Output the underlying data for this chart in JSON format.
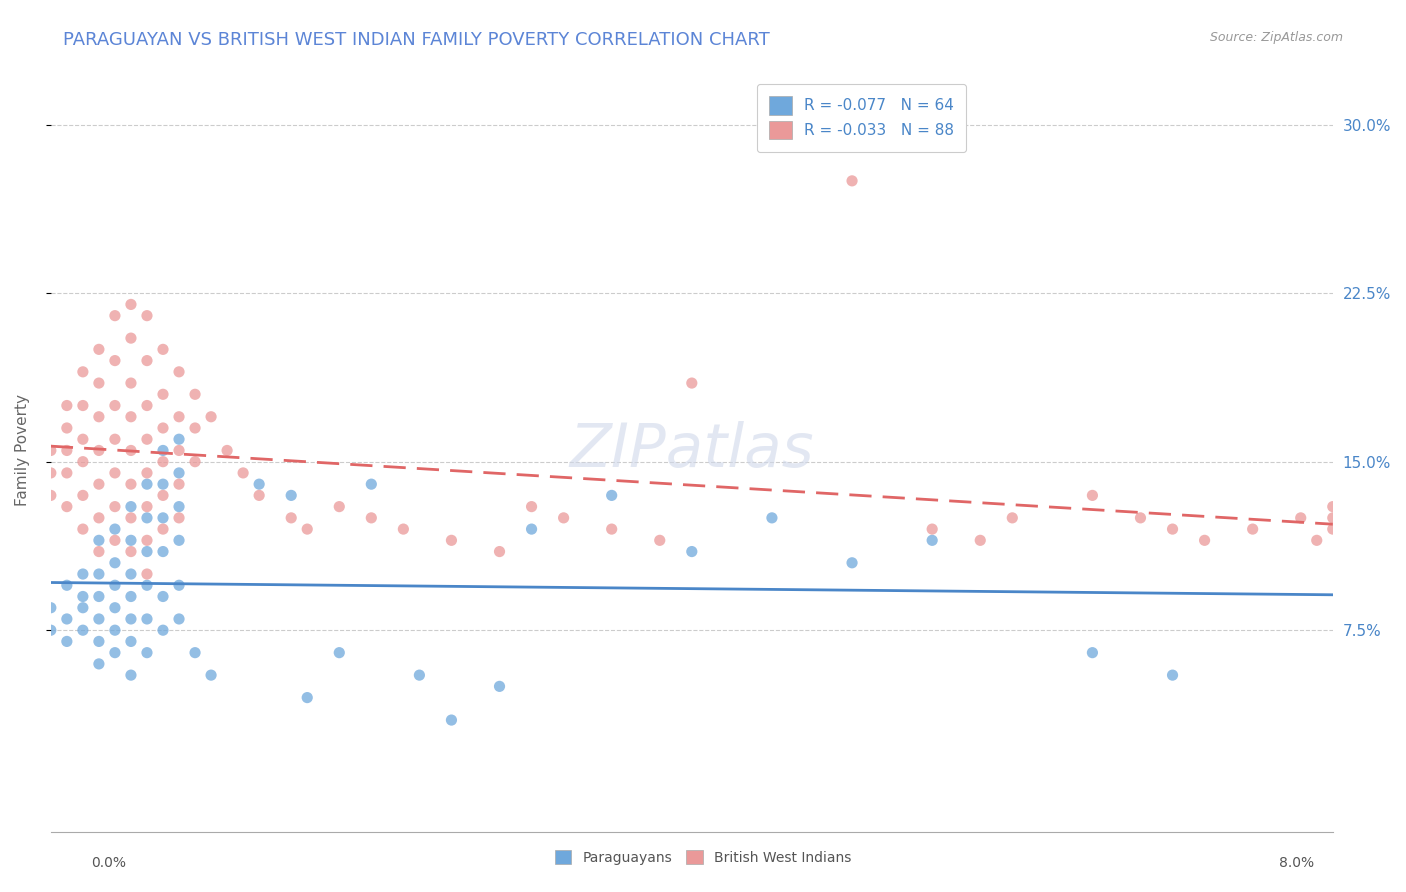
{
  "title": "PARAGUAYAN VS BRITISH WEST INDIAN FAMILY POVERTY CORRELATION CHART",
  "source": "Source: ZipAtlas.com",
  "ylabel": "Family Poverty",
  "ytick_labels": [
    "7.5%",
    "15.0%",
    "22.5%",
    "30.0%"
  ],
  "ytick_values": [
    0.075,
    0.15,
    0.225,
    0.3
  ],
  "xlim": [
    0.0,
    0.08
  ],
  "ylim": [
    -0.015,
    0.325
  ],
  "legend_r1": "R = -0.077   N = 64",
  "legend_r2": "R = -0.033   N = 88",
  "blue_color": "#6fa8dc",
  "pink_color": "#ea9999",
  "blue_line_color": "#4a86c8",
  "pink_line_color": "#e06666",
  "grid_color": "#cccccc",
  "watermark_color": "#d0d8ea",
  "paraguayan_points": [
    [
      0.0,
      0.085
    ],
    [
      0.0,
      0.075
    ],
    [
      0.001,
      0.095
    ],
    [
      0.001,
      0.08
    ],
    [
      0.001,
      0.07
    ],
    [
      0.002,
      0.1
    ],
    [
      0.002,
      0.09
    ],
    [
      0.002,
      0.085
    ],
    [
      0.002,
      0.075
    ],
    [
      0.003,
      0.115
    ],
    [
      0.003,
      0.1
    ],
    [
      0.003,
      0.09
    ],
    [
      0.003,
      0.08
    ],
    [
      0.003,
      0.07
    ],
    [
      0.003,
      0.06
    ],
    [
      0.004,
      0.12
    ],
    [
      0.004,
      0.105
    ],
    [
      0.004,
      0.095
    ],
    [
      0.004,
      0.085
    ],
    [
      0.004,
      0.075
    ],
    [
      0.004,
      0.065
    ],
    [
      0.005,
      0.13
    ],
    [
      0.005,
      0.115
    ],
    [
      0.005,
      0.1
    ],
    [
      0.005,
      0.09
    ],
    [
      0.005,
      0.08
    ],
    [
      0.005,
      0.07
    ],
    [
      0.005,
      0.055
    ],
    [
      0.006,
      0.14
    ],
    [
      0.006,
      0.125
    ],
    [
      0.006,
      0.11
    ],
    [
      0.006,
      0.095
    ],
    [
      0.006,
      0.08
    ],
    [
      0.006,
      0.065
    ],
    [
      0.007,
      0.155
    ],
    [
      0.007,
      0.14
    ],
    [
      0.007,
      0.125
    ],
    [
      0.007,
      0.11
    ],
    [
      0.007,
      0.09
    ],
    [
      0.007,
      0.075
    ],
    [
      0.008,
      0.16
    ],
    [
      0.008,
      0.145
    ],
    [
      0.008,
      0.13
    ],
    [
      0.008,
      0.115
    ],
    [
      0.008,
      0.095
    ],
    [
      0.008,
      0.08
    ],
    [
      0.009,
      0.065
    ],
    [
      0.01,
      0.055
    ],
    [
      0.013,
      0.14
    ],
    [
      0.015,
      0.135
    ],
    [
      0.016,
      0.045
    ],
    [
      0.018,
      0.065
    ],
    [
      0.02,
      0.14
    ],
    [
      0.023,
      0.055
    ],
    [
      0.025,
      0.035
    ],
    [
      0.028,
      0.05
    ],
    [
      0.03,
      0.12
    ],
    [
      0.035,
      0.135
    ],
    [
      0.04,
      0.11
    ],
    [
      0.045,
      0.125
    ],
    [
      0.05,
      0.105
    ],
    [
      0.055,
      0.115
    ],
    [
      0.065,
      0.065
    ],
    [
      0.07,
      0.055
    ]
  ],
  "bwi_points": [
    [
      0.0,
      0.145
    ],
    [
      0.0,
      0.155
    ],
    [
      0.0,
      0.135
    ],
    [
      0.001,
      0.175
    ],
    [
      0.001,
      0.165
    ],
    [
      0.001,
      0.155
    ],
    [
      0.001,
      0.145
    ],
    [
      0.001,
      0.13
    ],
    [
      0.002,
      0.19
    ],
    [
      0.002,
      0.175
    ],
    [
      0.002,
      0.16
    ],
    [
      0.002,
      0.15
    ],
    [
      0.002,
      0.135
    ],
    [
      0.002,
      0.12
    ],
    [
      0.003,
      0.2
    ],
    [
      0.003,
      0.185
    ],
    [
      0.003,
      0.17
    ],
    [
      0.003,
      0.155
    ],
    [
      0.003,
      0.14
    ],
    [
      0.003,
      0.125
    ],
    [
      0.003,
      0.11
    ],
    [
      0.004,
      0.215
    ],
    [
      0.004,
      0.195
    ],
    [
      0.004,
      0.175
    ],
    [
      0.004,
      0.16
    ],
    [
      0.004,
      0.145
    ],
    [
      0.004,
      0.13
    ],
    [
      0.004,
      0.115
    ],
    [
      0.005,
      0.22
    ],
    [
      0.005,
      0.205
    ],
    [
      0.005,
      0.185
    ],
    [
      0.005,
      0.17
    ],
    [
      0.005,
      0.155
    ],
    [
      0.005,
      0.14
    ],
    [
      0.005,
      0.125
    ],
    [
      0.005,
      0.11
    ],
    [
      0.006,
      0.215
    ],
    [
      0.006,
      0.195
    ],
    [
      0.006,
      0.175
    ],
    [
      0.006,
      0.16
    ],
    [
      0.006,
      0.145
    ],
    [
      0.006,
      0.13
    ],
    [
      0.006,
      0.115
    ],
    [
      0.006,
      0.1
    ],
    [
      0.007,
      0.2
    ],
    [
      0.007,
      0.18
    ],
    [
      0.007,
      0.165
    ],
    [
      0.007,
      0.15
    ],
    [
      0.007,
      0.135
    ],
    [
      0.007,
      0.12
    ],
    [
      0.008,
      0.19
    ],
    [
      0.008,
      0.17
    ],
    [
      0.008,
      0.155
    ],
    [
      0.008,
      0.14
    ],
    [
      0.008,
      0.125
    ],
    [
      0.009,
      0.18
    ],
    [
      0.009,
      0.165
    ],
    [
      0.009,
      0.15
    ],
    [
      0.01,
      0.17
    ],
    [
      0.011,
      0.155
    ],
    [
      0.012,
      0.145
    ],
    [
      0.013,
      0.135
    ],
    [
      0.015,
      0.125
    ],
    [
      0.016,
      0.12
    ],
    [
      0.018,
      0.13
    ],
    [
      0.02,
      0.125
    ],
    [
      0.022,
      0.12
    ],
    [
      0.025,
      0.115
    ],
    [
      0.028,
      0.11
    ],
    [
      0.03,
      0.13
    ],
    [
      0.032,
      0.125
    ],
    [
      0.035,
      0.12
    ],
    [
      0.038,
      0.115
    ],
    [
      0.04,
      0.185
    ],
    [
      0.05,
      0.275
    ],
    [
      0.055,
      0.12
    ],
    [
      0.058,
      0.115
    ],
    [
      0.06,
      0.125
    ],
    [
      0.065,
      0.135
    ],
    [
      0.068,
      0.125
    ],
    [
      0.07,
      0.12
    ],
    [
      0.072,
      0.115
    ],
    [
      0.075,
      0.12
    ],
    [
      0.078,
      0.125
    ],
    [
      0.08,
      0.13
    ],
    [
      0.08,
      0.125
    ],
    [
      0.08,
      0.12
    ],
    [
      0.079,
      0.115
    ]
  ]
}
